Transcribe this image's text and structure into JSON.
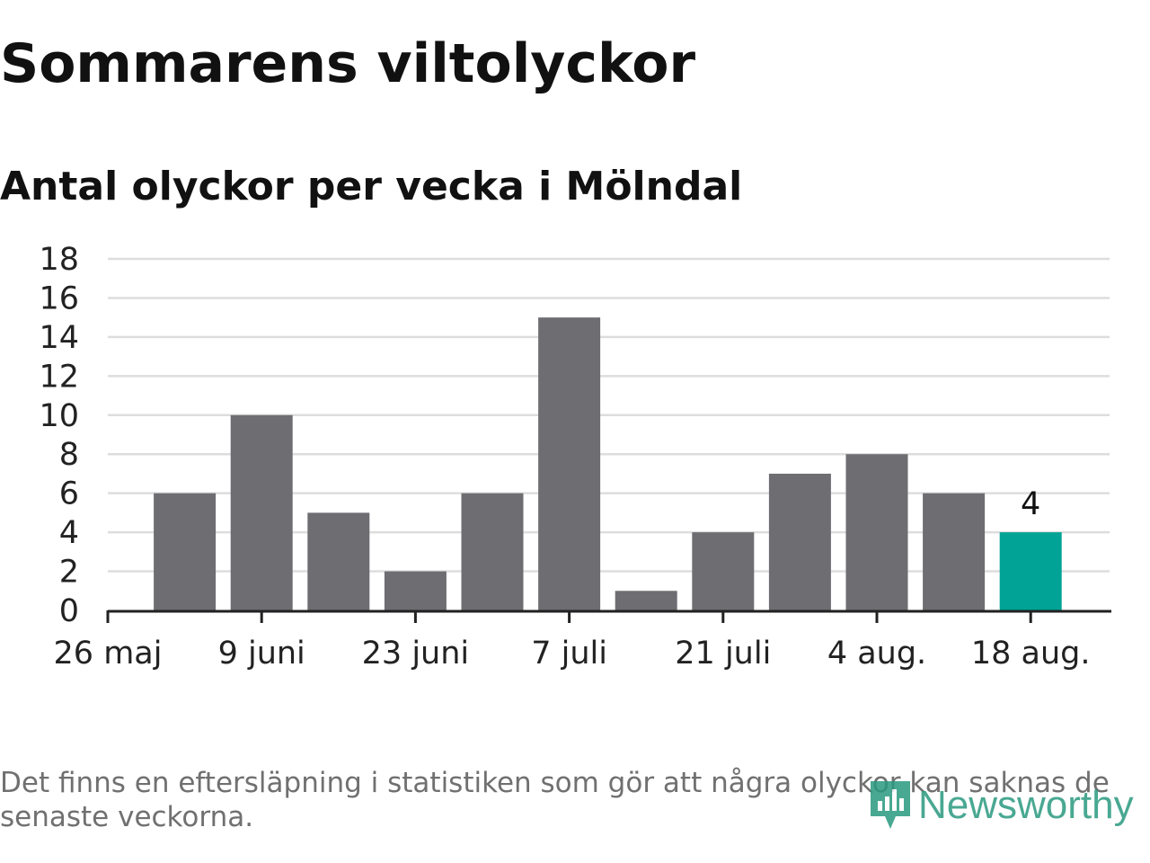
{
  "title": "Sommarens viltolyckor",
  "subtitle": "Antal olyckor per vecka i Mölndal",
  "note": "Det finns en eftersläpning i statistiken som gör att några olyckor kan saknas de senaste veckorna.",
  "brand": {
    "name": "Newsworthy",
    "icon": "bar-chart-pin-icon",
    "color": "#2a9a7f"
  },
  "chart_data": {
    "type": "bar",
    "x": [
      "26 maj",
      "2 juni",
      "9 juni",
      "16 juni",
      "23 juni",
      "30 juni",
      "7 juli",
      "14 juli",
      "21 juli",
      "28 juli",
      "4 aug.",
      "11 aug.",
      "18 aug."
    ],
    "values": [
      null,
      6,
      10,
      5,
      2,
      6,
      15,
      1,
      4,
      7,
      8,
      6,
      4
    ],
    "tick_labels": [
      "26 maj",
      "9 juni",
      "23 juni",
      "7 juli",
      "21 juli",
      "4 aug.",
      "18 aug."
    ],
    "highlight_index": 12,
    "data_labels": [
      {
        "index": 12,
        "text": "4"
      }
    ],
    "ylim": [
      0,
      18
    ],
    "yticks": [
      0,
      2,
      4,
      6,
      8,
      10,
      12,
      14,
      16,
      18
    ],
    "grid": true,
    "legend": "none",
    "bar_color": "#6e6d72",
    "highlight_color": "#00a395",
    "gridline_color": "#dddddd"
  }
}
